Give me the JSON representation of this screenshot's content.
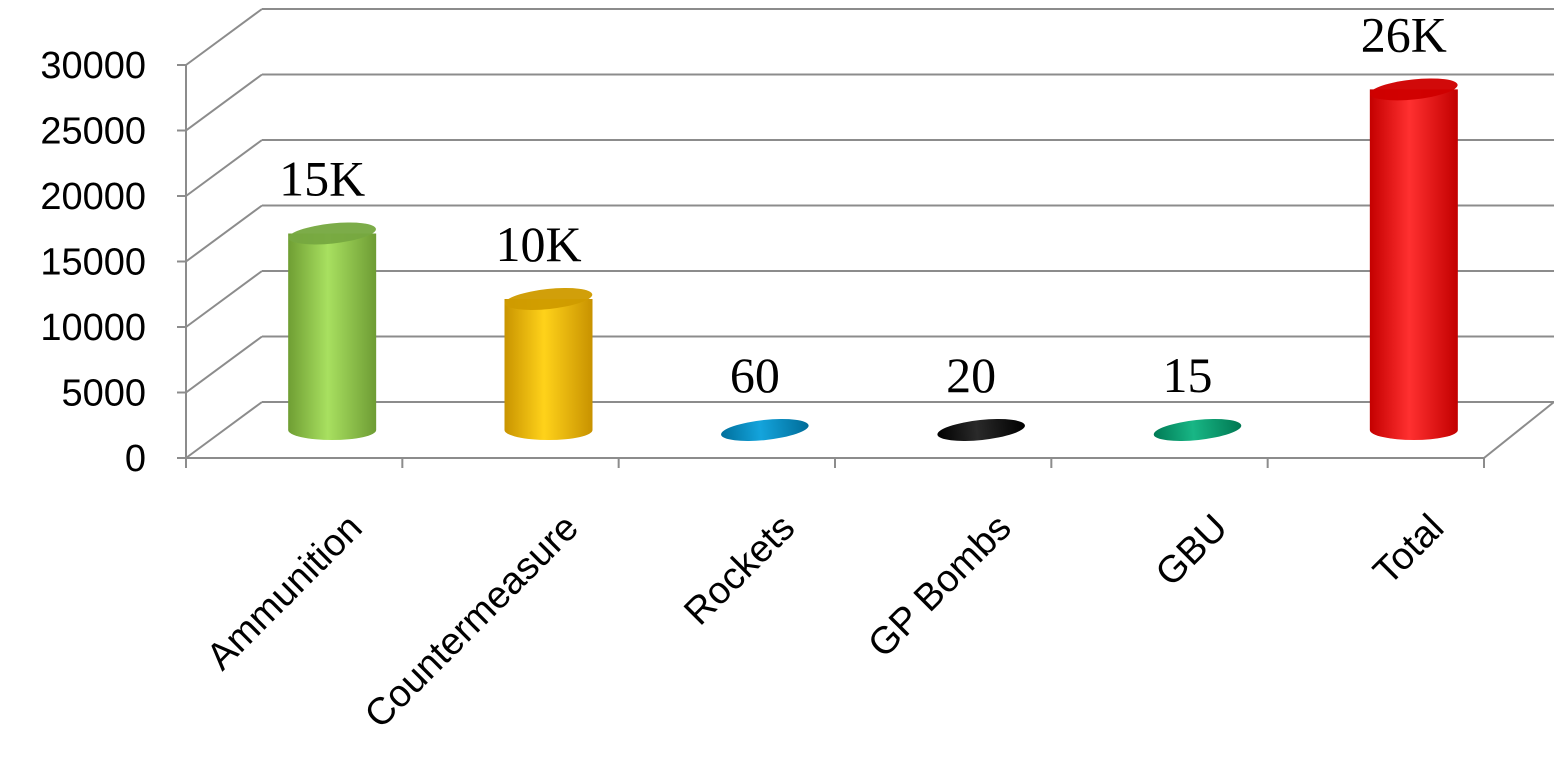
{
  "chart_data": {
    "type": "bar",
    "style": "3d-cylinder",
    "categories": [
      "Ammunition",
      "Countermeasure",
      "Rockets",
      "GP Bombs",
      "GBU",
      "Total"
    ],
    "values": [
      15000,
      10000,
      60,
      20,
      15,
      26000
    ],
    "data_labels": [
      "15K",
      "10K",
      "60",
      "20",
      "15",
      "26K"
    ],
    "colors": [
      "#92d050",
      "#ffc000",
      "#0090c8",
      "#000000",
      "#00a070",
      "#ff0000"
    ],
    "y_ticks": [
      "0",
      "5000",
      "10000",
      "15000",
      "20000",
      "25000",
      "30000"
    ],
    "ylim": [
      0,
      30000
    ],
    "grid": true,
    "legend": "none"
  }
}
